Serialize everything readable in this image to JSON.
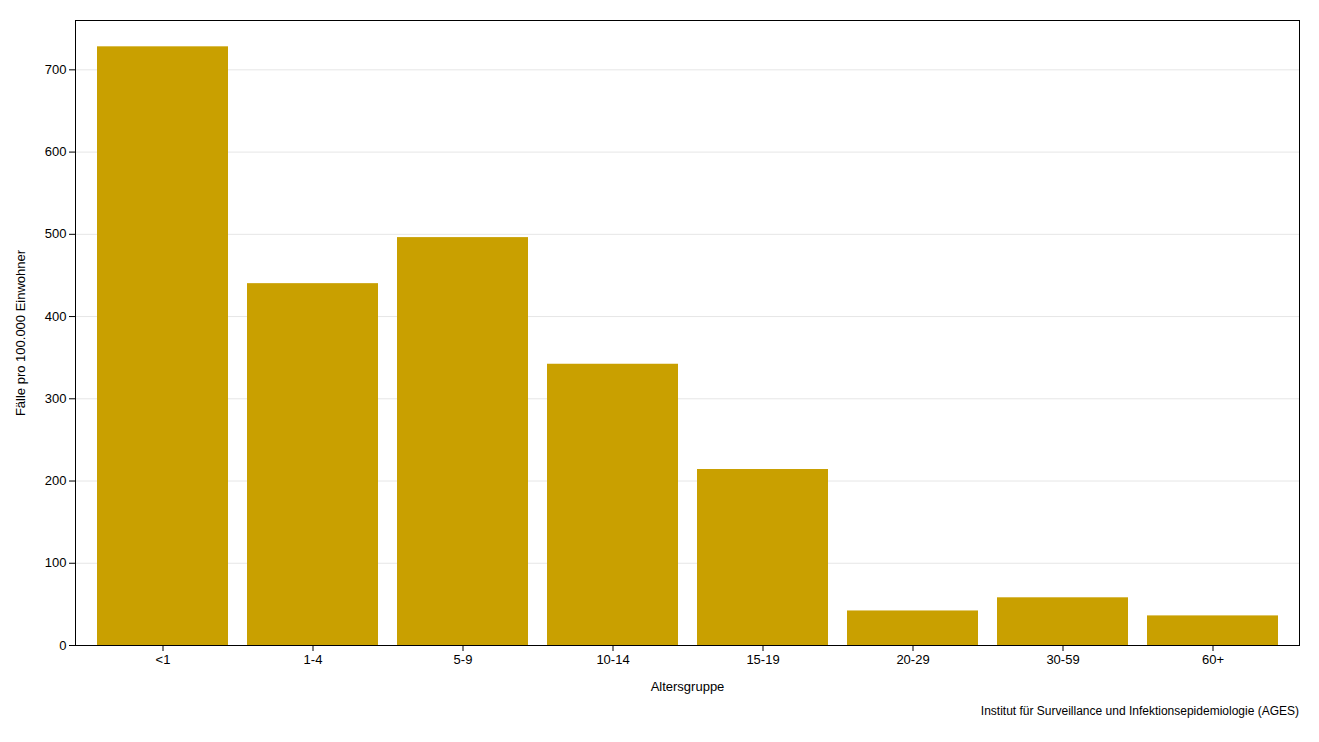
{
  "chart_data": {
    "type": "bar",
    "categories": [
      "<1",
      "1-4",
      "5-9",
      "10-14",
      "15-19",
      "20-29",
      "30-59",
      "60+"
    ],
    "values": [
      728,
      440,
      496,
      342,
      214,
      42,
      58,
      36
    ],
    "color": "#C9A000",
    "xlabel": "Altersgruppe",
    "ylabel": "Fälle pro 100.000 Einwohner",
    "ylim": [
      0,
      760
    ],
    "yticks": [
      0,
      100,
      200,
      300,
      400,
      500,
      600,
      700
    ],
    "grid": true,
    "annotations": [
      "Institut für Surveillance und Infektionsepidemiologie (AGES)"
    ]
  }
}
